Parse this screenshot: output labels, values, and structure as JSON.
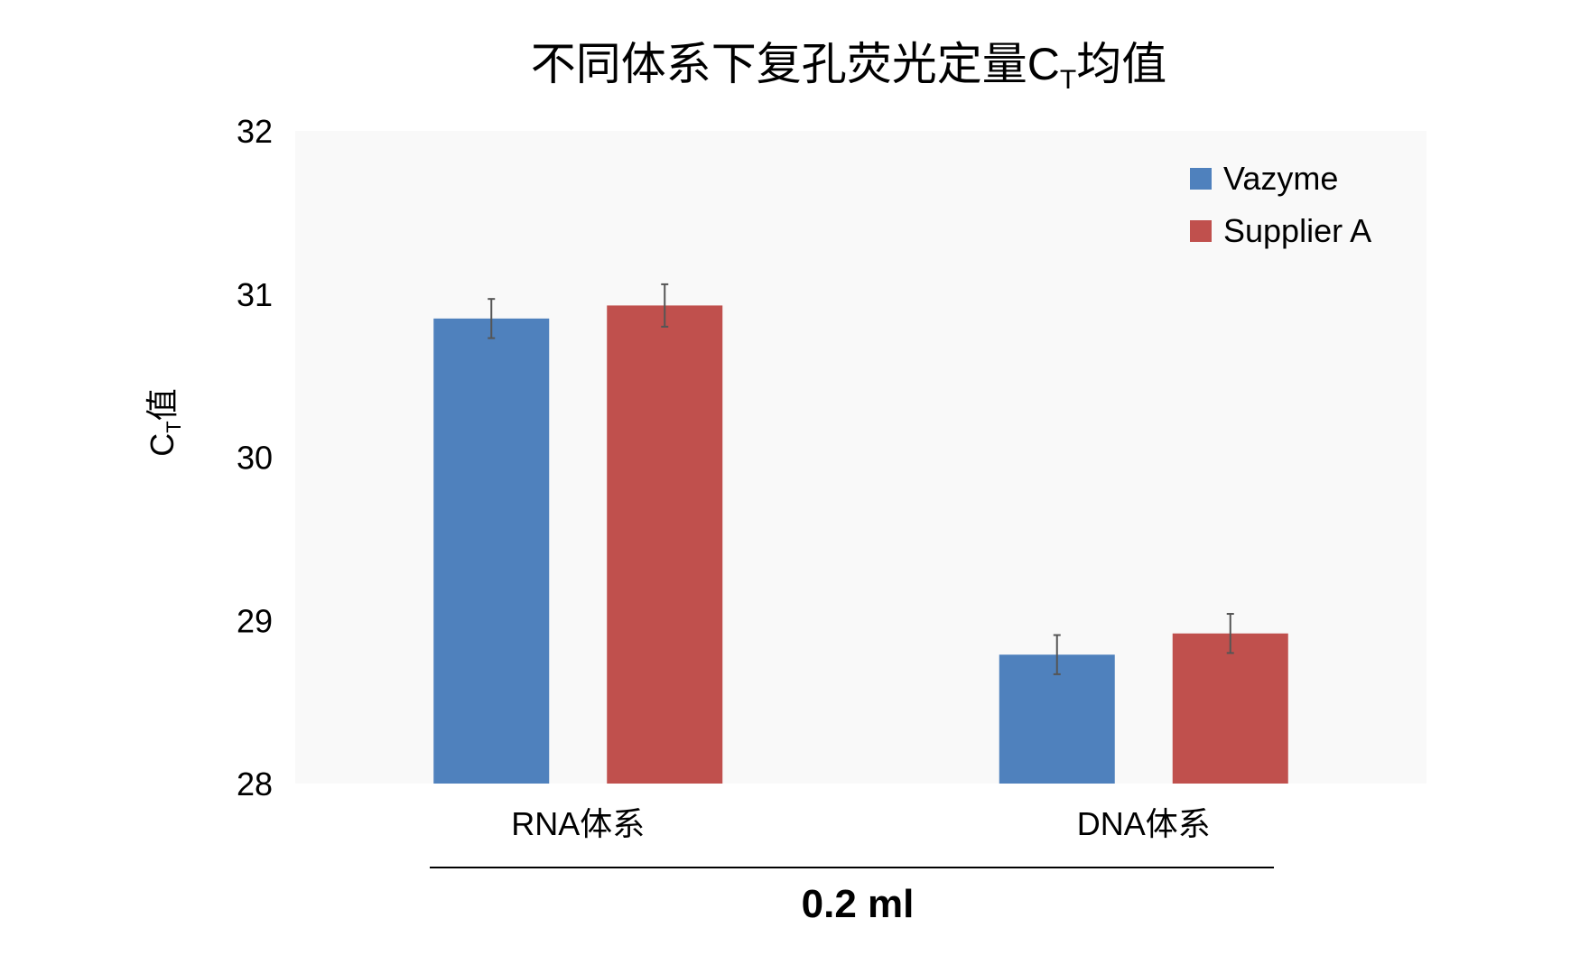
{
  "chart_data": {
    "type": "bar",
    "title": {
      "main": "不同体系下复孔荧光定量C",
      "sub": "T",
      "after": "均值"
    },
    "ylabel": {
      "main": "C",
      "sub": "T",
      "after": "值"
    },
    "categories": [
      "RNA体系",
      "DNA体系"
    ],
    "group_label": "0.2 ml",
    "ylim": [
      28,
      32
    ],
    "yticks": [
      28,
      29,
      30,
      31,
      32
    ],
    "grid": false,
    "legend_position": "top-right",
    "series": [
      {
        "name": "Vazyme",
        "color": "#4f81bd",
        "values": [
          30.85,
          28.79
        ],
        "errors": [
          0.12,
          0.12
        ]
      },
      {
        "name": "Supplier A",
        "color": "#c0504d",
        "values": [
          30.93,
          28.92
        ],
        "errors": [
          0.13,
          0.12
        ]
      }
    ],
    "plot_background": "#f9f9f9"
  }
}
